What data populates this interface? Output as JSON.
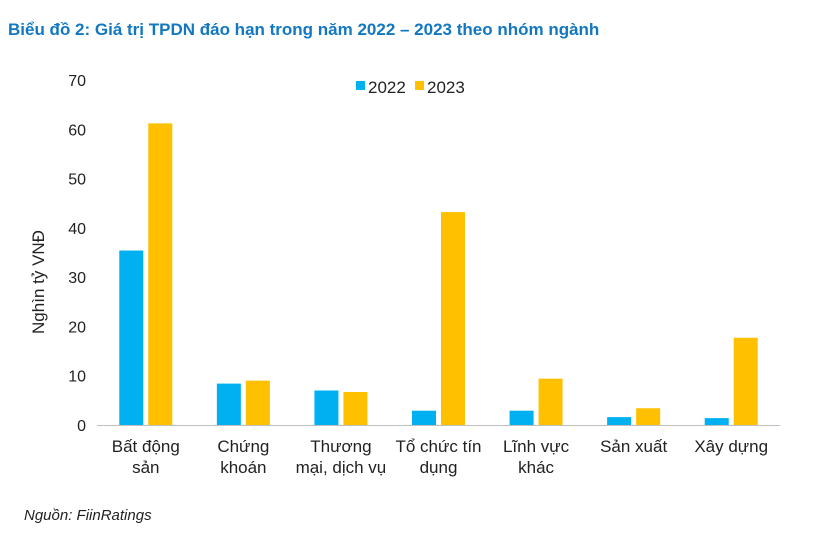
{
  "title": "Biểu đồ 2: Giá trị TPDN đáo hạn trong năm 2022 – 2023 theo nhóm ngành",
  "source": "Nguồn: FiinRatings",
  "colors": {
    "2022": "#00b0f0",
    "2023": "#ffc000",
    "title": "#1278c0"
  },
  "chart_data": {
    "type": "bar",
    "title": "Biểu đồ 2: Giá trị TPDN đáo hạn trong năm 2022 – 2023 theo nhóm ngành",
    "xlabel": "",
    "ylabel": "Nghìn tỷ VNĐ",
    "ylim": [
      0,
      70
    ],
    "yticks": [
      0,
      10,
      20,
      30,
      40,
      50,
      60,
      70
    ],
    "grid": false,
    "legend_position": "top",
    "categories": [
      [
        "Bất động",
        "sản"
      ],
      [
        "Chứng",
        "khoán"
      ],
      [
        "Thương",
        "mại, dịch vụ"
      ],
      [
        "Tổ chức tín",
        "dụng"
      ],
      [
        "Lĩnh vực",
        "khác"
      ],
      [
        "Sản xuất"
      ],
      [
        "Xây dựng"
      ]
    ],
    "series": [
      {
        "name": "2022",
        "color": "#00b0f0",
        "values": [
          35.4,
          8.4,
          7.0,
          2.9,
          2.9,
          1.6,
          1.4
        ]
      },
      {
        "name": "2023",
        "color": "#ffc000",
        "values": [
          61.2,
          9.0,
          6.7,
          43.2,
          9.4,
          3.4,
          17.7
        ]
      }
    ]
  }
}
